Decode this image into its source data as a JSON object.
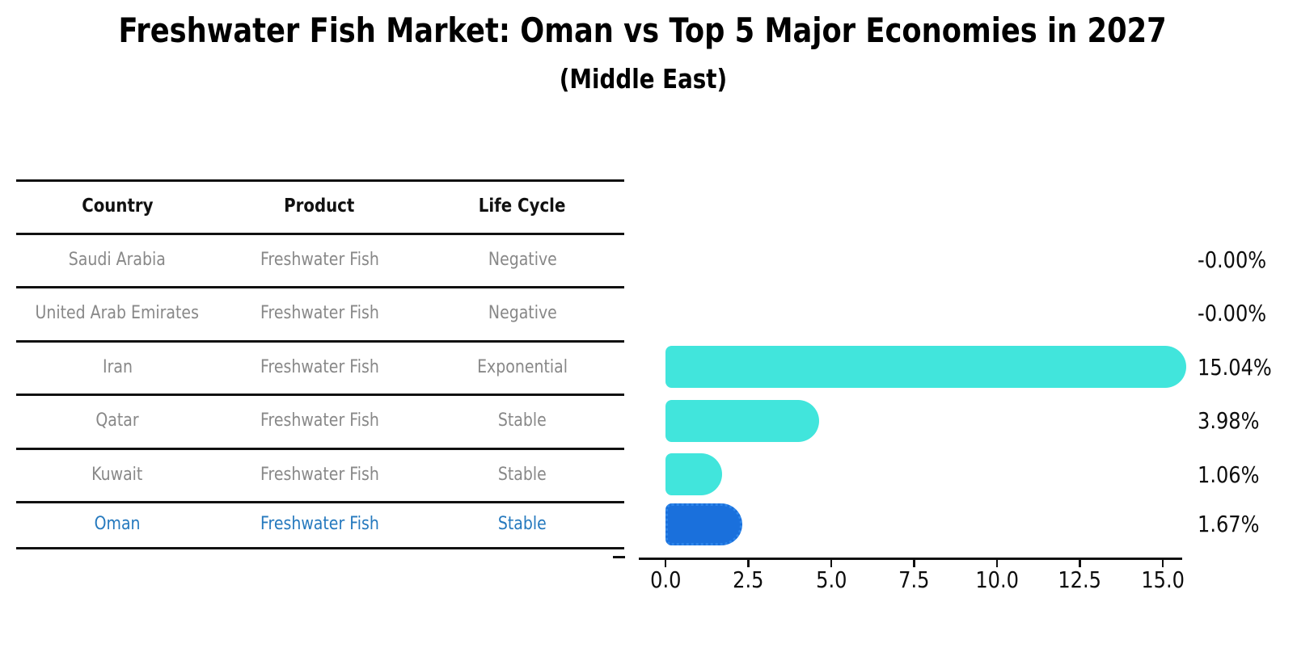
{
  "title": "Freshwater Fish Market: Oman vs Top 5 Major Economies in 2027",
  "subtitle": "(Middle East)",
  "table": {
    "headers": [
      "Country",
      "Product",
      "Life Cycle"
    ],
    "rows": [
      {
        "country": "Saudi Arabia",
        "product": "Freshwater Fish",
        "life_cycle": "Negative",
        "highlight": false
      },
      {
        "country": "United Arab Emirates",
        "product": "Freshwater Fish",
        "life_cycle": "Negative",
        "highlight": false
      },
      {
        "country": "Iran",
        "product": "Freshwater Fish",
        "life_cycle": "Exponential",
        "highlight": false
      },
      {
        "country": "Qatar",
        "product": "Freshwater Fish",
        "life_cycle": "Stable",
        "highlight": false
      },
      {
        "country": "Kuwait",
        "product": "Freshwater Fish",
        "life_cycle": "Stable",
        "highlight": false
      },
      {
        "country": "Oman",
        "product": "Freshwater Fish",
        "life_cycle": "Stable",
        "highlight": true
      }
    ]
  },
  "chart_data": {
    "type": "bar",
    "orientation": "horizontal",
    "title": "Freshwater Fish Market: Oman vs Top 5 Major Economies in 2027",
    "subtitle": "(Middle East)",
    "categories": [
      "Saudi Arabia",
      "United Arab Emirates",
      "Iran",
      "Qatar",
      "Kuwait",
      "Oman"
    ],
    "values": [
      -0.0,
      -0.0,
      15.04,
      3.98,
      1.06,
      1.67
    ],
    "value_labels": [
      "-0.00%",
      "-0.00%",
      "15.04%",
      "3.98%",
      "1.06%",
      "1.67%"
    ],
    "x_tick_labels": [
      "0.0",
      "2.5",
      "5.0",
      "7.5",
      "10.0",
      "12.5",
      "15.0"
    ],
    "x_tick_values": [
      0,
      2.5,
      5,
      7.5,
      10,
      12.5,
      15
    ],
    "xlim": [
      0,
      15.6
    ],
    "grid": false,
    "legend": false,
    "highlight_index": 5,
    "highlight_category": "Oman"
  },
  "colors": {
    "bar": "#41e5dc",
    "highlight_bar": "#1a70dc",
    "highlight_bar_border": "#2e86ea",
    "row_text": "#888888",
    "highlight_text": "#2579be",
    "header_text": "#111111",
    "axis_text": "#0d0d0d",
    "line": "#111111"
  }
}
